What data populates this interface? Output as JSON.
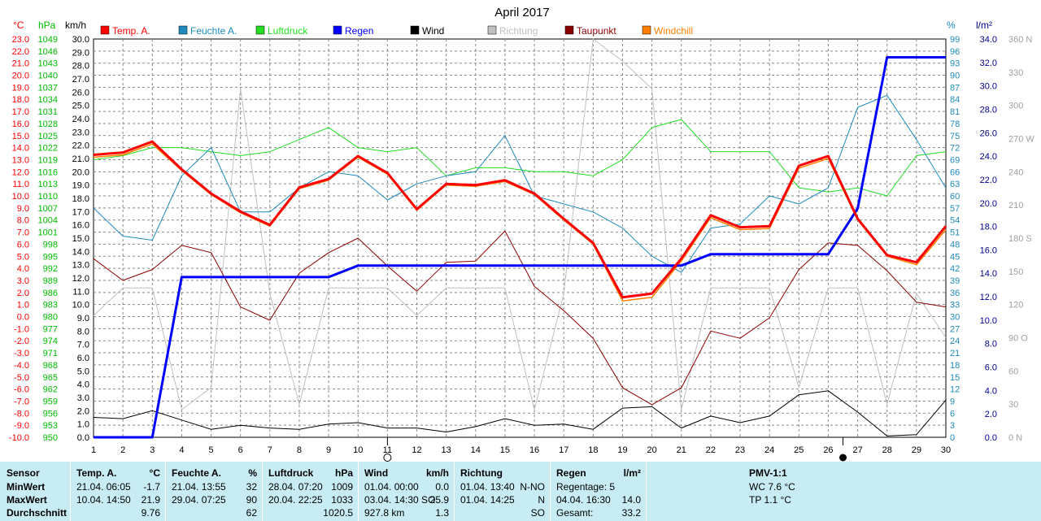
{
  "title": "April 2017",
  "units": {
    "temp": "°C",
    "hpa": "hPa",
    "kmh": "km/h",
    "pct": "%",
    "rain": "l/m²"
  },
  "legend": [
    {
      "label": "Temp. A.",
      "color": "#ff0000"
    },
    {
      "label": "Feuchte A.",
      "color": "#1e8aba"
    },
    {
      "label": "Luftdruck",
      "color": "#22dd22"
    },
    {
      "label": "Regen",
      "color": "#0000ff"
    },
    {
      "label": "Wind",
      "color": "#000000"
    },
    {
      "label": "Richtung",
      "color": "#c0c0c0"
    },
    {
      "label": "Taupunkt",
      "color": "#8b0000"
    },
    {
      "label": "Windchill",
      "color": "#ff8000"
    }
  ],
  "chart_data": {
    "type": "line",
    "title": "April 2017",
    "x": [
      1,
      2,
      3,
      4,
      5,
      6,
      7,
      8,
      9,
      10,
      11,
      12,
      13,
      14,
      15,
      16,
      17,
      18,
      19,
      20,
      21,
      22,
      23,
      24,
      25,
      26,
      27,
      28,
      29,
      30
    ],
    "xlim": [
      1,
      30
    ],
    "axes": {
      "temp": {
        "label": "°C",
        "range": [
          -10,
          23
        ],
        "ticks": [
          "23.0",
          "22.0",
          "21.0",
          "20.0",
          "19.0",
          "18.0",
          "17.0",
          "16.0",
          "15.0",
          "14.0",
          "13.0",
          "12.0",
          "11.0",
          "10.0",
          "9.0",
          "8.0",
          "7.0",
          "6.0",
          "5.0",
          "4.0",
          "3.0",
          "2.0",
          "1.0",
          "0.0",
          "-1.0",
          "-2.0",
          "-3.0",
          "-4.0",
          "-5.0",
          "-6.0",
          "-7.0",
          "-8.0",
          "-9.0",
          "-10.0"
        ]
      },
      "pressure": {
        "label": "hPa",
        "range": [
          950,
          1049
        ],
        "ticks": [
          "1049",
          "1046",
          "1043",
          "1040",
          "1037",
          "1034",
          "1031",
          "1028",
          "1025",
          "1022",
          "1019",
          "1016",
          "1013",
          "1010",
          "1007",
          "1004",
          "1001",
          "998",
          "995",
          "992",
          "989",
          "986",
          "983",
          "980",
          "977",
          "974",
          "971",
          "968",
          "965",
          "962",
          "959",
          "956",
          "953",
          "950"
        ]
      },
      "wind": {
        "label": "km/h",
        "range": [
          0,
          30
        ],
        "ticks": [
          "30.0",
          "29.0",
          "28.0",
          "27.0",
          "26.0",
          "25.0",
          "24.0",
          "23.0",
          "22.0",
          "21.0",
          "20.0",
          "19.0",
          "18.0",
          "17.0",
          "16.0",
          "15.0",
          "14.0",
          "13.0",
          "12.0",
          "11.0",
          "10.0",
          "9.0",
          "8.0",
          "7.0",
          "6.0",
          "5.0",
          "4.0",
          "3.0",
          "2.0",
          "1.0",
          "0.0"
        ]
      },
      "humidity": {
        "label": "%",
        "range": [
          0,
          99
        ],
        "ticks": [
          "99",
          "96",
          "93",
          "90",
          "87",
          "84",
          "81",
          "78",
          "75",
          "72",
          "69",
          "66",
          "63",
          "60",
          "57",
          "54",
          "51",
          "48",
          "45",
          "42",
          "39",
          "36",
          "33",
          "30",
          "27",
          "24",
          "21",
          "18",
          "15",
          "12",
          "9",
          "6",
          "3",
          "0"
        ]
      },
      "rain": {
        "label": "l/m²",
        "range": [
          0,
          34.8
        ],
        "ticks": [
          "34.0",
          "32.0",
          "30.0",
          "28.0",
          "26.0",
          "24.0",
          "22.0",
          "20.0",
          "18.0",
          "16.0",
          "14.0",
          "12.0",
          "10.0",
          "8.0",
          "6.0",
          "4.0",
          "2.0",
          "0.0"
        ]
      },
      "direction": {
        "range": [
          0,
          360
        ],
        "ticks": [
          "360 N",
          "330",
          "300",
          "270 W",
          "240",
          "210",
          "180 S",
          "150",
          "120",
          "90 O",
          "60",
          "30",
          "0 N"
        ]
      }
    },
    "series": [
      {
        "name": "Temp. A.",
        "axis": "temp",
        "color": "#ff0000",
        "values": [
          13.4,
          13.6,
          14.5,
          12.2,
          10.2,
          8.7,
          7.6,
          10.7,
          11.4,
          13.3,
          11.9,
          8.9,
          11.0,
          10.9,
          11.3,
          10.2,
          8.1,
          6.1,
          1.6,
          1.9,
          4.8,
          8.4,
          7.4,
          7.5,
          12.5,
          13.3,
          8.1,
          5.1,
          4.5,
          7.5
        ]
      },
      {
        "name": "Windchill",
        "axis": "temp",
        "color": "#ff8000",
        "values": [
          13.2,
          13.4,
          14.3,
          12.1,
          10.1,
          8.6,
          7.5,
          10.6,
          11.3,
          13.2,
          11.8,
          8.8,
          10.9,
          10.8,
          11.2,
          10.1,
          8.0,
          6.0,
          1.3,
          1.6,
          4.6,
          8.2,
          7.2,
          7.3,
          12.3,
          13.1,
          8.0,
          5.0,
          4.3,
          7.2
        ]
      },
      {
        "name": "Taupunkt",
        "axis": "temp",
        "color": "#8b0000",
        "values": [
          4.8,
          3.0,
          3.9,
          5.9,
          5.3,
          0.8,
          -0.3,
          3.6,
          5.3,
          6.5,
          4.2,
          2.1,
          4.5,
          4.6,
          7.1,
          2.5,
          0.5,
          -1.8,
          -5.9,
          -7.3,
          -5.9,
          -1.2,
          -1.8,
          -0.1,
          3.9,
          6.1,
          5.9,
          3.8,
          1.2,
          0.8
        ]
      },
      {
        "name": "Luftdruck",
        "axis": "pressure",
        "color": "#22dd22",
        "values": [
          1019,
          1020,
          1022,
          1022,
          1021,
          1020,
          1021,
          1024,
          1027,
          1022,
          1021,
          1022,
          1015,
          1017,
          1017,
          1016,
          1016,
          1015,
          1019,
          1027,
          1029,
          1021,
          1021,
          1021,
          1012,
          1011,
          1012,
          1010,
          1020,
          1021
        ]
      },
      {
        "name": "Feuchte A.",
        "axis": "humidity",
        "color": "#1e8aba",
        "values": [
          57,
          50,
          49,
          65,
          72,
          56,
          56,
          62,
          66,
          65,
          59,
          63,
          65,
          66,
          75,
          60,
          58,
          56,
          52,
          45,
          41,
          52,
          53,
          60,
          58,
          62,
          82,
          85,
          74,
          62
        ]
      },
      {
        "name": "Regen",
        "axis": "rain",
        "color": "#0000ff",
        "values": [
          0,
          0,
          0,
          14.0,
          14.0,
          14.0,
          14.0,
          14.0,
          14.0,
          15.0,
          15.0,
          15.0,
          15.0,
          15.0,
          15.0,
          15.0,
          15.0,
          15.0,
          15.0,
          15.0,
          15.0,
          16.0,
          16.0,
          16.0,
          16.0,
          16.0,
          20.0,
          33.2,
          33.2,
          33.2
        ]
      },
      {
        "name": "Wind",
        "axis": "wind",
        "color": "#000000",
        "values": [
          1.5,
          1.4,
          2.0,
          1.3,
          0.6,
          0.9,
          0.7,
          0.6,
          1.0,
          1.1,
          0.7,
          0.7,
          0.4,
          0.8,
          1.4,
          0.9,
          1.0,
          0.6,
          2.2,
          2.3,
          0.7,
          1.6,
          1.1,
          1.6,
          3.2,
          3.5,
          1.9,
          0.1,
          0.2,
          2.8
        ]
      },
      {
        "name": "Richtung",
        "axis": "direction",
        "color": "#c0c0c0",
        "values": [
          110,
          135,
          135,
          25,
          45,
          315,
          130,
          30,
          135,
          135,
          135,
          110,
          135,
          135,
          135,
          25,
          130,
          360,
          340,
          315,
          25,
          135,
          135,
          135,
          45,
          135,
          135,
          30,
          130,
          90
        ]
      }
    ],
    "moon_markers": [
      {
        "x": 11.0,
        "phase": "new"
      },
      {
        "x": 26.5,
        "phase": "full"
      }
    ],
    "grid": true
  },
  "footer": {
    "sensor": {
      "head": "Sensor",
      "rows": [
        "MinWert",
        "MaxWert",
        "Durchschnitt"
      ]
    },
    "temp": {
      "head": "Temp. A.",
      "unit": "°C",
      "rows": [
        [
          "21.04.  06:05",
          "-1.7"
        ],
        [
          "10.04.  14:50",
          "21.9"
        ],
        [
          "",
          "9.76"
        ]
      ]
    },
    "feuchte": {
      "head": "Feuchte A.",
      "unit": "%",
      "rows": [
        [
          "21.04.  13:55",
          "32"
        ],
        [
          "29.04.  07:25",
          "90"
        ],
        [
          "",
          "62"
        ]
      ]
    },
    "luftdruck": {
      "head": "Luftdruck",
      "unit": "hPa",
      "rows": [
        [
          "28.04.  07:20",
          "1009"
        ],
        [
          "20.04.  22:25",
          "1033"
        ],
        [
          "",
          "1020.5"
        ]
      ]
    },
    "wind": {
      "head": "Wind",
      "unit": "km/h",
      "rows": [
        [
          "01.04.  00:00",
          "0.0"
        ],
        [
          "03.04.  14:30 SO",
          "25.9"
        ],
        [
          "927.8 km",
          "1.3"
        ]
      ]
    },
    "richtung": {
      "head": "Richtung",
      "rows": [
        [
          "01.04.  13:40",
          "N-NO"
        ],
        [
          "01.04.  14:25",
          "N"
        ],
        [
          "",
          "SO"
        ]
      ]
    },
    "regen": {
      "head": "Regen",
      "unit": "l/m²",
      "rows": [
        [
          "Regentage: 5",
          ""
        ],
        [
          "04.04.  16:30",
          "14.0"
        ],
        [
          "Gesamt:",
          "33.2"
        ]
      ]
    },
    "pmv": {
      "head": "PMV-1:1",
      "rows": [
        "WC 7.6 °C",
        "TP 1.1 °C"
      ]
    }
  }
}
